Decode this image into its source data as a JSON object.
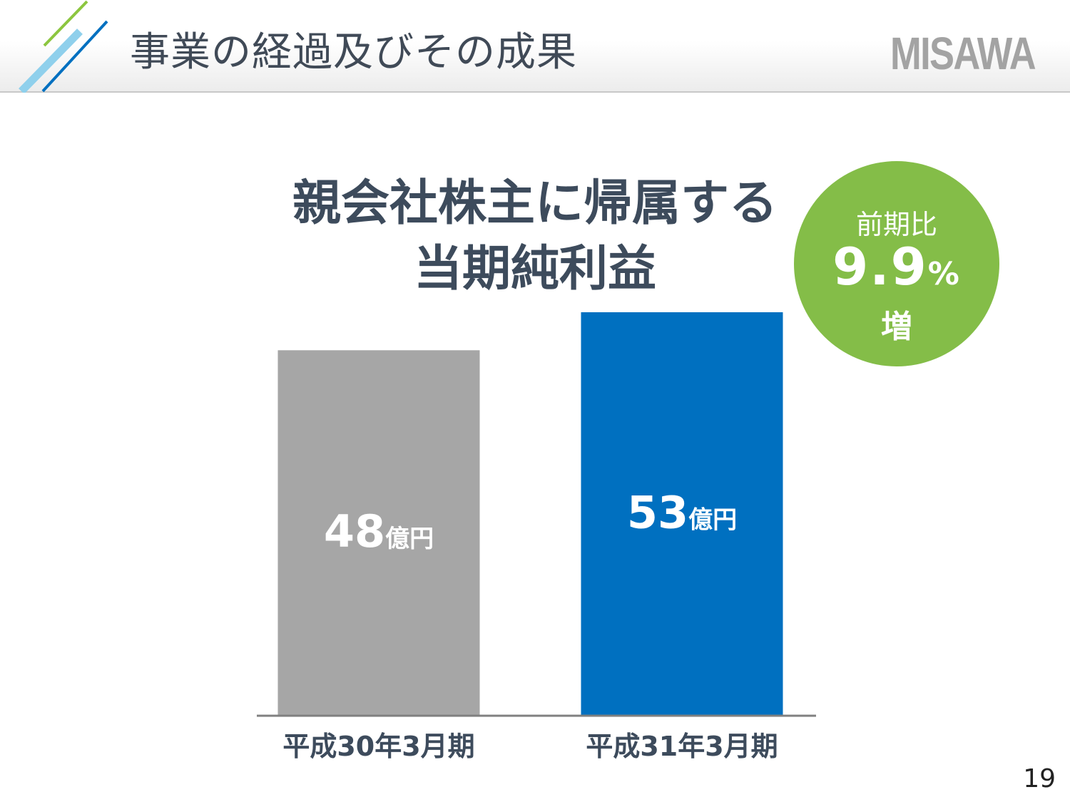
{
  "header": {
    "title": "事業の経過及びその成果",
    "logo_text": "MISAWA",
    "accent_colors": [
      "#8cc63f",
      "#8fd0ec",
      "#0070c0"
    ]
  },
  "badge": {
    "label": "前期比",
    "value": "9.9",
    "unit": "%",
    "suffix": "増",
    "color": "#84bd48"
  },
  "chart_data": {
    "type": "bar",
    "title_lines": [
      "親会社株主に帰属する",
      "当期純利益"
    ],
    "categories": [
      "平成30年3月期",
      "平成31年3月期"
    ],
    "values": [
      48,
      53
    ],
    "value_unit": "億円",
    "colors": [
      "#a6a6a6",
      "#0070c0"
    ],
    "xlabel": "",
    "ylabel": "",
    "ylim": [
      0,
      53
    ],
    "grid": false,
    "legend": "none"
  },
  "footer": {
    "page_number": "19"
  }
}
